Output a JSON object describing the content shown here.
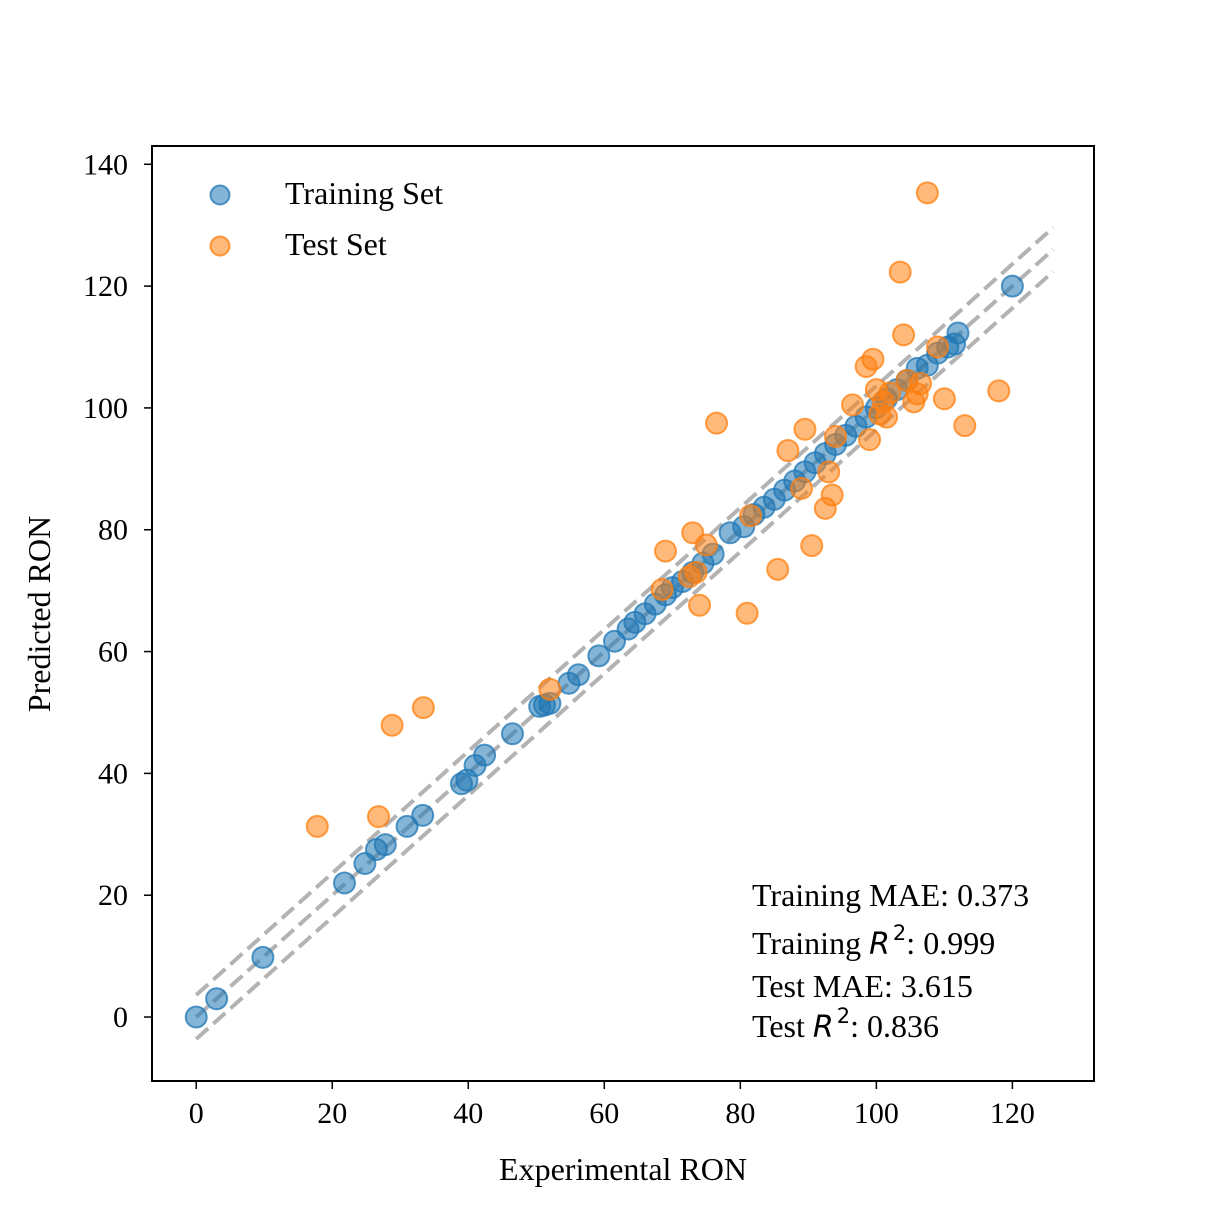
{
  "chart_data": {
    "type": "scatter",
    "xlabel": "Experimental RON",
    "ylabel": "Predicted RON",
    "xlim": [
      -6.5,
      132
    ],
    "ylim": [
      -10.5,
      143
    ],
    "xticks": [
      0,
      20,
      40,
      60,
      80,
      100,
      120
    ],
    "yticks": [
      0,
      20,
      40,
      60,
      80,
      100,
      120,
      140
    ],
    "grid": false,
    "legend_position": "top-left",
    "reference_lines": {
      "style": "dashed gray",
      "x_range": [
        0,
        126
      ],
      "offsets": [
        0,
        3.615,
        -3.615
      ]
    },
    "series": [
      {
        "name": "Training Set",
        "color": "#1f77b4",
        "points": [
          [
            0,
            0
          ],
          [
            3,
            3
          ],
          [
            9.8,
            9.8
          ],
          [
            21.8,
            22
          ],
          [
            24.8,
            25.2
          ],
          [
            26.5,
            27.5
          ],
          [
            27.8,
            28.3
          ],
          [
            31,
            31.3
          ],
          [
            33.3,
            33.1
          ],
          [
            39,
            38.3
          ],
          [
            39.8,
            38.9
          ],
          [
            41,
            41.3
          ],
          [
            42.4,
            43
          ],
          [
            46.5,
            46.5
          ],
          [
            50.5,
            51
          ],
          [
            51.2,
            51.2
          ],
          [
            52,
            51.5
          ],
          [
            54.8,
            54.8
          ],
          [
            56.2,
            56.2
          ],
          [
            59.2,
            59.3
          ],
          [
            61.5,
            61.7
          ],
          [
            63.5,
            63.7
          ],
          [
            64.5,
            64.8
          ],
          [
            66,
            66.2
          ],
          [
            67.5,
            67.8
          ],
          [
            69,
            69.3
          ],
          [
            70,
            70.5
          ],
          [
            71.5,
            71.5
          ],
          [
            73,
            73
          ],
          [
            74.5,
            74.5
          ],
          [
            76,
            76
          ],
          [
            78.5,
            79.5
          ],
          [
            80.5,
            80.5
          ],
          [
            82,
            82.5
          ],
          [
            83.5,
            83.7
          ],
          [
            85,
            85
          ],
          [
            86.5,
            86.5
          ],
          [
            88,
            88
          ],
          [
            89.5,
            89.5
          ],
          [
            91,
            91
          ],
          [
            92.5,
            92.5
          ],
          [
            94,
            94
          ],
          [
            95.5,
            95.5
          ],
          [
            97,
            97
          ],
          [
            98.5,
            98.5
          ],
          [
            100,
            100
          ],
          [
            101.5,
            101.5
          ],
          [
            103,
            103
          ],
          [
            104.5,
            104.5
          ],
          [
            106,
            106.5
          ],
          [
            107.5,
            107
          ],
          [
            109,
            109
          ],
          [
            110.5,
            110
          ],
          [
            111.5,
            110.5
          ],
          [
            112,
            112.3
          ],
          [
            120,
            120
          ]
        ]
      },
      {
        "name": "Test Set",
        "color": "#ff7f0e",
        "points": [
          [
            17.8,
            31.3
          ],
          [
            26.8,
            32.9
          ],
          [
            28.8,
            47.9
          ],
          [
            33.4,
            50.8
          ],
          [
            52,
            53.8
          ],
          [
            68.5,
            70.2
          ],
          [
            69,
            76.5
          ],
          [
            73,
            79.5
          ],
          [
            72.5,
            72.3
          ],
          [
            73.5,
            73
          ],
          [
            74,
            67.6
          ],
          [
            75,
            77.5
          ],
          [
            76.5,
            97.5
          ],
          [
            81,
            66.3
          ],
          [
            81.5,
            82.3
          ],
          [
            85.5,
            73.5
          ],
          [
            87,
            93
          ],
          [
            89,
            86.8
          ],
          [
            89.5,
            96.5
          ],
          [
            90.5,
            77.4
          ],
          [
            92.5,
            83.5
          ],
          [
            93,
            89.5
          ],
          [
            93.5,
            85.7
          ],
          [
            94,
            95.3
          ],
          [
            96.5,
            100.5
          ],
          [
            98.5,
            106.8
          ],
          [
            99,
            94.8
          ],
          [
            99.5,
            108
          ],
          [
            100,
            103
          ],
          [
            100.5,
            99
          ],
          [
            101,
            101
          ],
          [
            101.5,
            98.5
          ],
          [
            102,
            102.5
          ],
          [
            103.5,
            122.3
          ],
          [
            104,
            112
          ],
          [
            104.5,
            104.5
          ],
          [
            105.5,
            101
          ],
          [
            106,
            102.3
          ],
          [
            106.5,
            104
          ],
          [
            107.5,
            135.3
          ],
          [
            109,
            110
          ],
          [
            110,
            101.5
          ],
          [
            113,
            97.1
          ],
          [
            118,
            102.8
          ]
        ]
      }
    ],
    "annotations": [
      {
        "prefix": "Training MAE: ",
        "symbol": "",
        "sup": "",
        "value": "0.373"
      },
      {
        "prefix": "Training ",
        "symbol": "R",
        "sup": "2",
        "value": ": 0.999"
      },
      {
        "prefix": "Test MAE: ",
        "symbol": "",
        "sup": "",
        "value": "3.615"
      },
      {
        "prefix": "Test ",
        "symbol": "R",
        "sup": "2",
        "value": ": 0.836"
      }
    ]
  }
}
